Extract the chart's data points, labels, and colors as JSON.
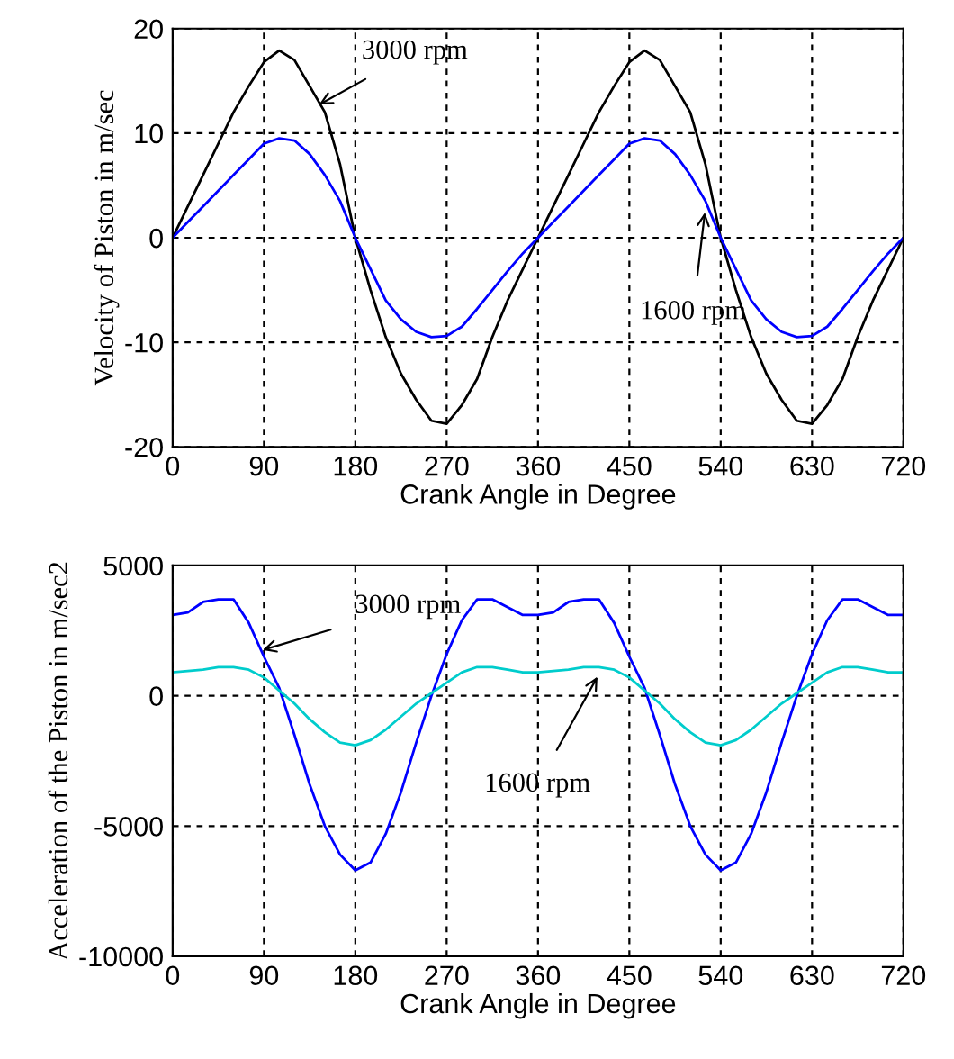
{
  "chart_data": [
    {
      "type": "line",
      "xlabel": "Crank Angle in Degree",
      "ylabel": "Velocity of Piston in m/sec",
      "xlim": [
        0,
        720
      ],
      "ylim": [
        -20,
        20
      ],
      "xticks": [
        0,
        90,
        180,
        270,
        360,
        450,
        540,
        630,
        720
      ],
      "yticks": [
        -20,
        -10,
        0,
        10,
        20
      ],
      "grid": true,
      "line_style": "solid",
      "marker": "none",
      "x": [
        0,
        15,
        30,
        45,
        60,
        75,
        90,
        105,
        120,
        135,
        150,
        165,
        180,
        195,
        210,
        225,
        240,
        255,
        270,
        285,
        300,
        315,
        330,
        345,
        360,
        375,
        390,
        405,
        420,
        435,
        450,
        465,
        480,
        495,
        510,
        525,
        540,
        555,
        570,
        585,
        600,
        615,
        630,
        645,
        660,
        675,
        690,
        705,
        720
      ],
      "series": [
        {
          "color": "#000000",
          "values": [
            0,
            3,
            6,
            9,
            12,
            14.5,
            16.8,
            17.9,
            17,
            14.5,
            12,
            7,
            0,
            -5,
            -9.5,
            -13,
            -15.5,
            -17.5,
            -17.8,
            -16,
            -13.5,
            -9.5,
            -6,
            -3,
            0,
            3,
            6,
            9,
            12,
            14.5,
            16.8,
            17.9,
            17,
            14.5,
            12,
            7,
            0,
            -5,
            -9.5,
            -13,
            -15.5,
            -17.5,
            -17.8,
            -16,
            -13.5,
            -9.5,
            -6,
            -3,
            0
          ]
        },
        {
          "color": "#0000ff",
          "values": [
            0,
            1.5,
            3,
            4.5,
            6,
            7.5,
            9,
            9.5,
            9.3,
            8,
            6,
            3.5,
            0,
            -3,
            -6,
            -7.8,
            -9,
            -9.5,
            -9.4,
            -8.5,
            -6.8,
            -5,
            -3.2,
            -1.5,
            0,
            1.5,
            3,
            4.5,
            6,
            7.5,
            9,
            9.5,
            9.3,
            8,
            6,
            3.5,
            0,
            -3,
            -6,
            -7.8,
            -9,
            -9.5,
            -9.4,
            -8.5,
            -6.8,
            -5,
            -3.2,
            -1.5,
            0
          ]
        }
      ],
      "annotations": [
        {
          "text": "3000 rpm",
          "x": 140,
          "y": 12.5
        },
        {
          "text": "1600 rpm",
          "x": 525,
          "y": 2.9
        }
      ]
    },
    {
      "type": "line",
      "xlabel": "Crank Angle in Degree",
      "ylabel": "Acceleration of the Piston in m/sec2",
      "xlim": [
        0,
        720
      ],
      "ylim": [
        -10000,
        5000
      ],
      "xticks": [
        0,
        90,
        180,
        270,
        360,
        450,
        540,
        630,
        720
      ],
      "yticks": [
        -10000,
        -5000,
        0,
        5000
      ],
      "grid": true,
      "line_style": "solid",
      "marker": "none",
      "x": [
        0,
        15,
        30,
        45,
        60,
        75,
        90,
        105,
        120,
        135,
        150,
        165,
        180,
        195,
        210,
        225,
        240,
        255,
        270,
        285,
        300,
        315,
        330,
        345,
        360,
        375,
        390,
        405,
        420,
        435,
        450,
        465,
        480,
        495,
        510,
        525,
        540,
        555,
        570,
        585,
        600,
        615,
        630,
        645,
        660,
        675,
        690,
        705,
        720
      ],
      "series": [
        {
          "color": "#0000ff",
          "values": [
            3100,
            3200,
            3600,
            3700,
            3700,
            2800,
            1500,
            300,
            -1500,
            -3400,
            -5000,
            -6100,
            -6700,
            -6400,
            -5300,
            -3700,
            -1800,
            0,
            1600,
            2900,
            3700,
            3700,
            3400,
            3100,
            3100,
            3200,
            3600,
            3700,
            3700,
            2800,
            1500,
            300,
            -1500,
            -3400,
            -5000,
            -6100,
            -6700,
            -6400,
            -5300,
            -3700,
            -1800,
            0,
            1600,
            2900,
            3700,
            3700,
            3400,
            3100,
            3100
          ]
        },
        {
          "color": "#00cccc",
          "values": [
            900,
            950,
            1000,
            1100,
            1100,
            1000,
            700,
            200,
            -300,
            -900,
            -1400,
            -1800,
            -1900,
            -1700,
            -1300,
            -800,
            -300,
            100,
            500,
            900,
            1100,
            1100,
            1000,
            900,
            900,
            950,
            1000,
            1100,
            1100,
            1000,
            700,
            200,
            -300,
            -900,
            -1400,
            -1800,
            -1900,
            -1700,
            -1300,
            -800,
            -300,
            100,
            500,
            900,
            1100,
            1100,
            1000,
            900,
            900
          ]
        }
      ],
      "annotations": [
        {
          "text": "3000 rpm",
          "x": 84,
          "y": 1700
        },
        {
          "text": "1600 rpm",
          "x": 421,
          "y": 900
        }
      ]
    }
  ]
}
